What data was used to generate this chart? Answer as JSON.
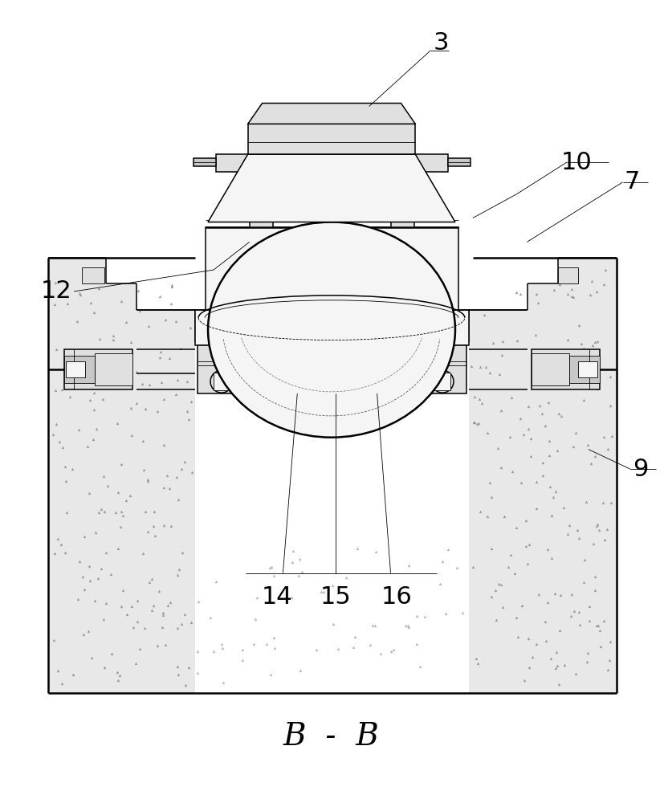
{
  "bg_color": "#ffffff",
  "lc": "#000000",
  "concrete_fill": "#e8e8e8",
  "light_fill": "#f5f5f5",
  "mid_fill": "#e0e0e0",
  "dark_fill": "#c8c8c8",
  "lw_thick": 1.8,
  "lw_main": 1.1,
  "lw_thin": 0.6,
  "label_fs": 22,
  "caption_fs": 28,
  "fig_w": 8.27,
  "fig_h": 10.0,
  "dpi": 100
}
